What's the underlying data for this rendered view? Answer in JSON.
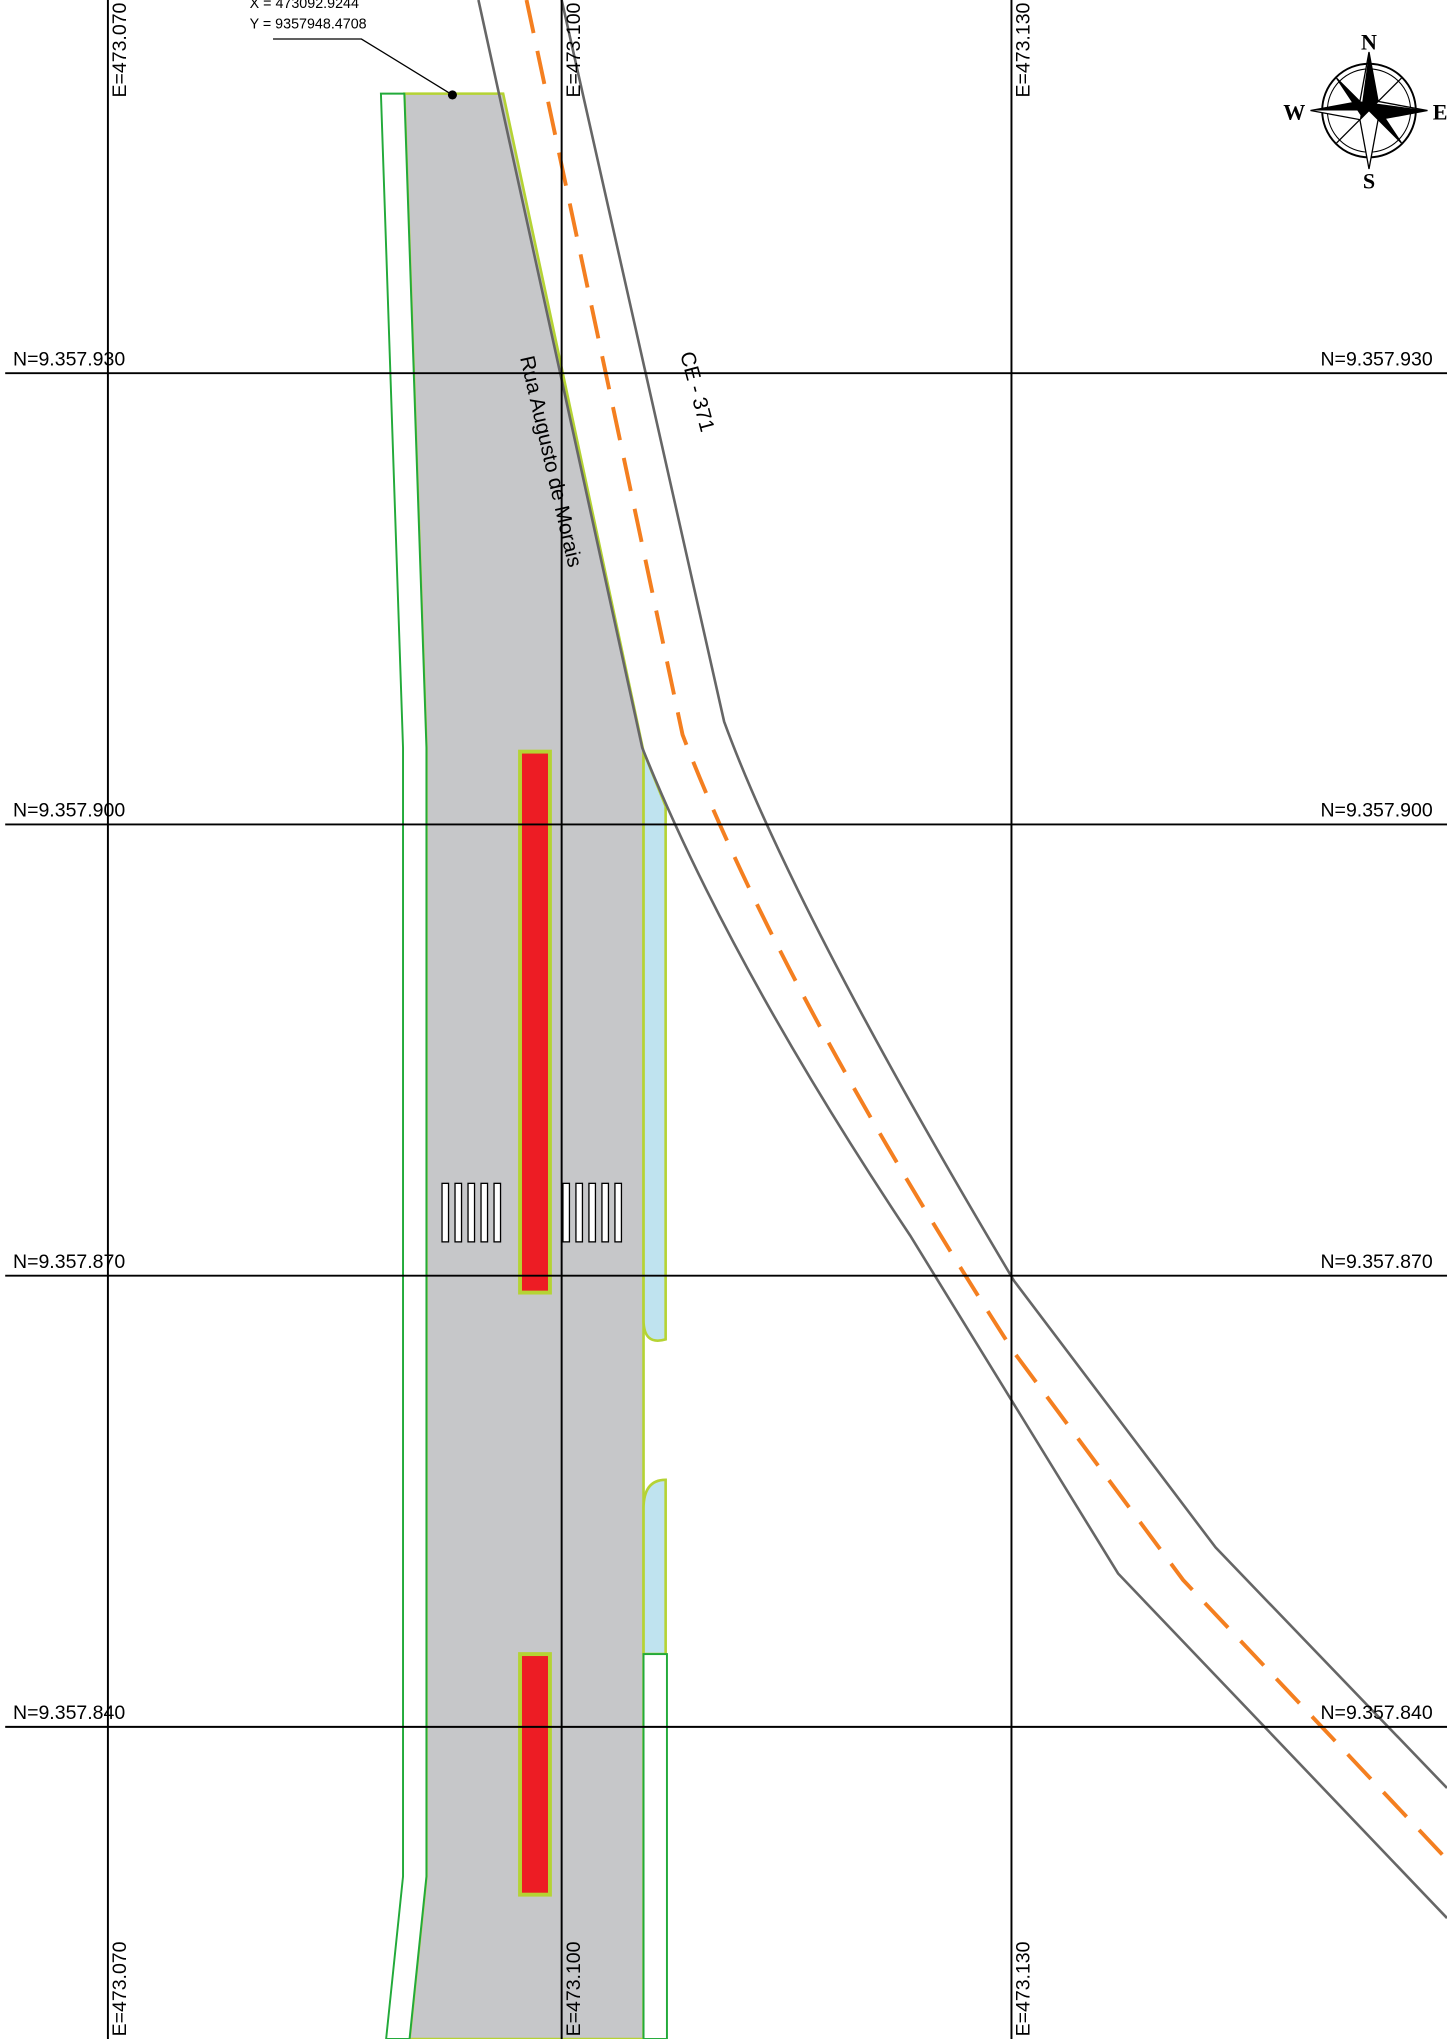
{
  "grid": {
    "eastings": [
      "E=473.070",
      "E=473.100",
      "E=473.130"
    ],
    "northings": [
      "N=9.357.930",
      "N=9.357.900",
      "N=9.357.870",
      "N=9.357.840"
    ]
  },
  "annotation": {
    "x": "X = 473092.9244",
    "y": "Y = 9357948.4708"
  },
  "roads": {
    "street": "Rua Augusto de Morais",
    "highway": "CE - 371"
  },
  "compass": {
    "n": "N",
    "s": "S",
    "e": "E",
    "w": "W"
  }
}
